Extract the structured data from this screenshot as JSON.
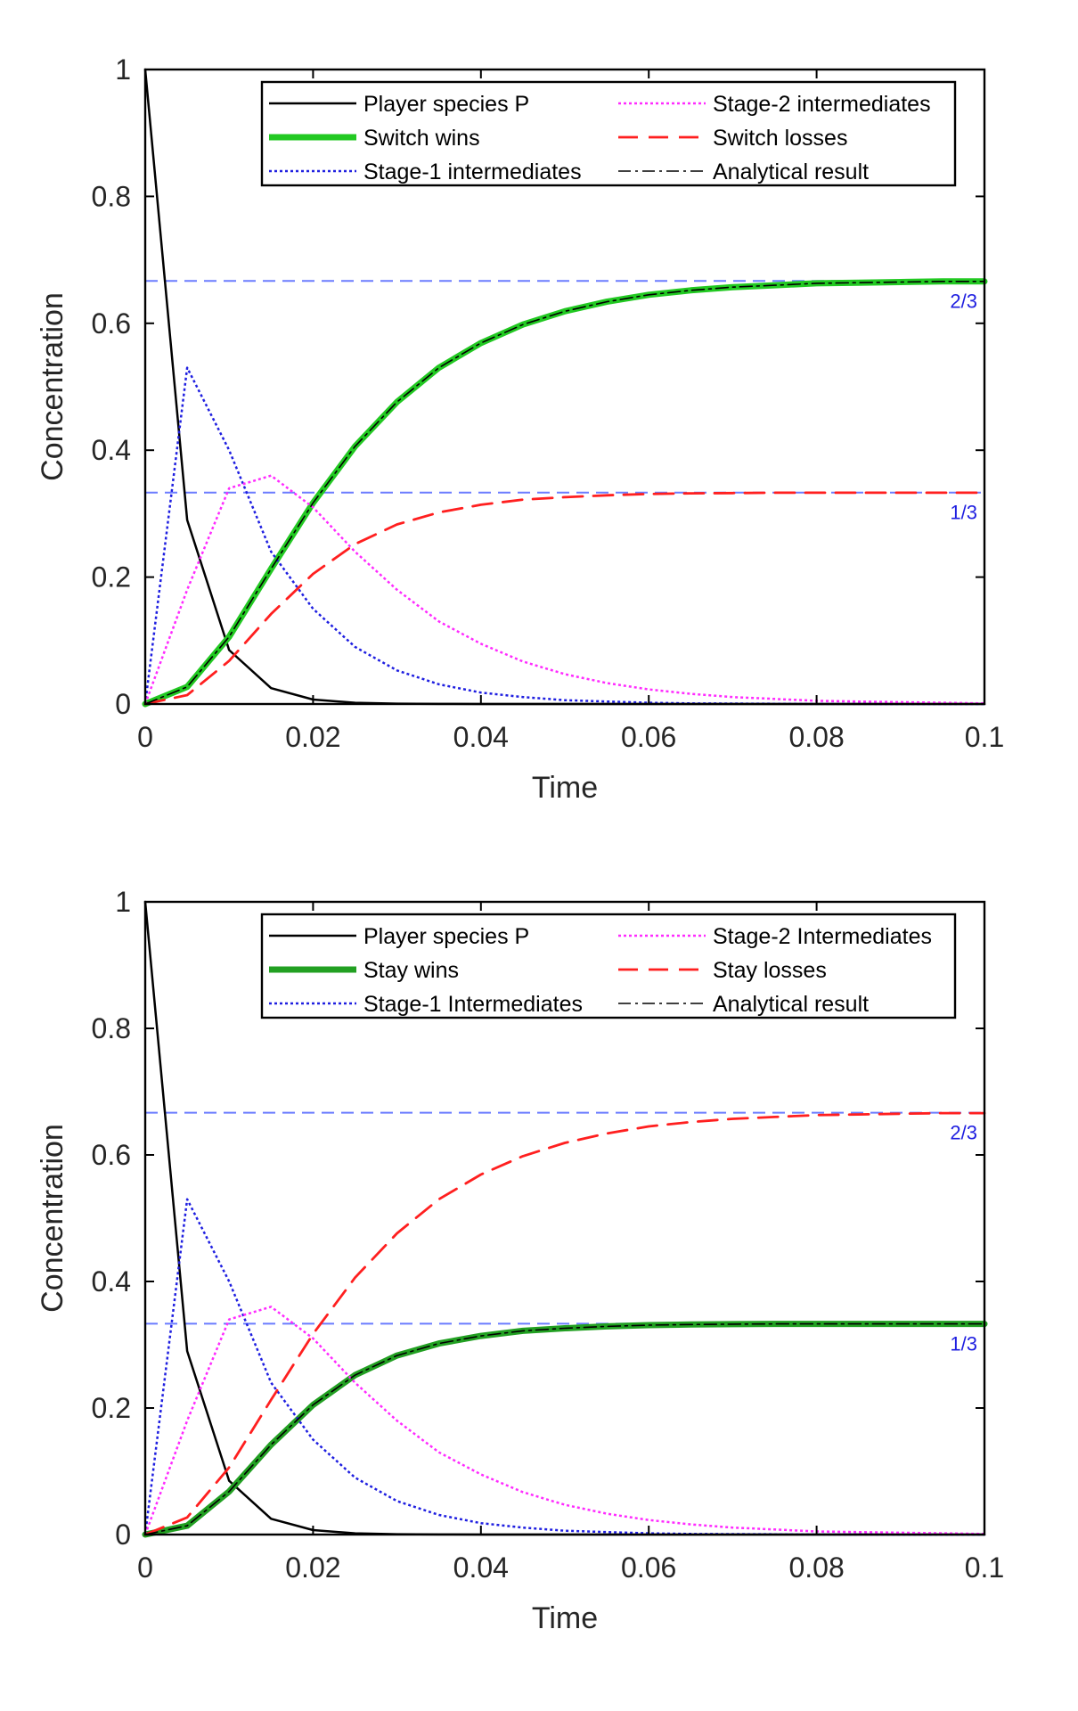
{
  "chart_data": [
    {
      "type": "line",
      "xlabel": "Time",
      "ylabel": "Concentration",
      "xlim": [
        0,
        0.1
      ],
      "ylim": [
        0,
        1
      ],
      "xticks": [
        0,
        0.02,
        0.04,
        0.06,
        0.08,
        0.1
      ],
      "xtick_labels": [
        "0",
        "0.02",
        "0.04",
        "0.06",
        "0.08",
        "0.1"
      ],
      "yticks": [
        0,
        0.2,
        0.4,
        0.6,
        0.8,
        1
      ],
      "ytick_labels": [
        "0",
        "0.2",
        "0.4",
        "0.6",
        "0.8",
        "1"
      ],
      "grid": false,
      "legend_position": "top-right",
      "ref_lines": [
        {
          "y": 0.6667,
          "label": "2/3",
          "color": "#6b7cff"
        },
        {
          "y": 0.3333,
          "label": "1/3",
          "color": "#6b7cff"
        }
      ],
      "x": [
        0,
        0.005,
        0.01,
        0.015,
        0.02,
        0.025,
        0.03,
        0.035,
        0.04,
        0.045,
        0.05,
        0.055,
        0.06,
        0.065,
        0.07,
        0.075,
        0.08,
        0.085,
        0.09,
        0.095,
        0.1
      ],
      "series": [
        {
          "name": "Player species P",
          "color": "#000000",
          "style": "solid",
          "width": 2.5,
          "values": [
            1.0,
            0.29,
            0.085,
            0.025,
            0.007,
            0.002,
            0.0006,
            0.0002,
            0,
            0,
            0,
            0,
            0,
            0,
            0,
            0,
            0,
            0,
            0,
            0,
            0
          ]
        },
        {
          "name": "Switch wins",
          "color": "#22c922",
          "style": "solid",
          "width": 7,
          "values": [
            0.0,
            0.027,
            0.106,
            0.213,
            0.317,
            0.406,
            0.476,
            0.53,
            0.569,
            0.598,
            0.619,
            0.634,
            0.645,
            0.652,
            0.657,
            0.66,
            0.663,
            0.664,
            0.665,
            0.666,
            0.666
          ]
        },
        {
          "name": "Stage-1 intermediates",
          "color": "#1f1fe0",
          "style": "dotted",
          "width": 2.5,
          "values": [
            0.0,
            0.53,
            0.4,
            0.24,
            0.15,
            0.09,
            0.053,
            0.031,
            0.018,
            0.011,
            0.006,
            0.004,
            0.002,
            0.001,
            0.0007,
            0.0004,
            0.0002,
            0.0001,
            0,
            0,
            0
          ]
        },
        {
          "name": "Stage-2 intermediates",
          "color": "#ff2bff",
          "style": "dotted",
          "width": 2.5,
          "values": [
            0.0,
            0.18,
            0.34,
            0.36,
            0.31,
            0.24,
            0.18,
            0.13,
            0.095,
            0.067,
            0.047,
            0.033,
            0.023,
            0.016,
            0.011,
            0.008,
            0.005,
            0.004,
            0.003,
            0.002,
            0.001
          ]
        },
        {
          "name": "Switch losses",
          "color": "#ff1f1f",
          "style": "dashed",
          "width": 2.8,
          "values": [
            0.0,
            0.014,
            0.068,
            0.142,
            0.205,
            0.252,
            0.283,
            0.302,
            0.314,
            0.322,
            0.326,
            0.329,
            0.331,
            0.332,
            0.3325,
            0.333,
            0.333,
            0.333,
            0.333,
            0.333,
            0.333
          ]
        },
        {
          "name": "Analytical result",
          "color": "#000000",
          "style": "dashdot",
          "width": 1.6,
          "values": [
            0.0,
            0.027,
            0.106,
            0.213,
            0.317,
            0.406,
            0.476,
            0.53,
            0.569,
            0.598,
            0.619,
            0.634,
            0.645,
            0.652,
            0.657,
            0.66,
            0.663,
            0.664,
            0.665,
            0.666,
            0.666
          ]
        }
      ],
      "legend_order": [
        0,
        3,
        1,
        4,
        2,
        5
      ]
    },
    {
      "type": "line",
      "xlabel": "Time",
      "ylabel": "Concentration",
      "xlim": [
        0,
        0.1
      ],
      "ylim": [
        0,
        1
      ],
      "xticks": [
        0,
        0.02,
        0.04,
        0.06,
        0.08,
        0.1
      ],
      "xtick_labels": [
        "0",
        "0.02",
        "0.04",
        "0.06",
        "0.08",
        "0.1"
      ],
      "yticks": [
        0,
        0.2,
        0.4,
        0.6,
        0.8,
        1
      ],
      "ytick_labels": [
        "0",
        "0.2",
        "0.4",
        "0.6",
        "0.8",
        "1"
      ],
      "grid": false,
      "legend_position": "top-right",
      "ref_lines": [
        {
          "y": 0.6667,
          "label": "2/3",
          "color": "#6b7cff"
        },
        {
          "y": 0.3333,
          "label": "1/3",
          "color": "#6b7cff"
        }
      ],
      "x": [
        0,
        0.005,
        0.01,
        0.015,
        0.02,
        0.025,
        0.03,
        0.035,
        0.04,
        0.045,
        0.05,
        0.055,
        0.06,
        0.065,
        0.07,
        0.075,
        0.08,
        0.085,
        0.09,
        0.095,
        0.1
      ],
      "series": [
        {
          "name": "Player species P",
          "color": "#000000",
          "style": "solid",
          "width": 2.5,
          "values": [
            1.0,
            0.29,
            0.085,
            0.025,
            0.007,
            0.002,
            0.0006,
            0.0002,
            0,
            0,
            0,
            0,
            0,
            0,
            0,
            0,
            0,
            0,
            0,
            0,
            0
          ]
        },
        {
          "name": "Stay wins",
          "color": "#22a022",
          "style": "solid",
          "width": 7,
          "values": [
            0.0,
            0.014,
            0.068,
            0.142,
            0.205,
            0.252,
            0.283,
            0.302,
            0.314,
            0.322,
            0.326,
            0.329,
            0.331,
            0.332,
            0.3325,
            0.333,
            0.333,
            0.333,
            0.333,
            0.333,
            0.333
          ]
        },
        {
          "name": "Stage-1 Intermediates",
          "color": "#1f1fe0",
          "style": "dotted",
          "width": 2.5,
          "values": [
            0.0,
            0.53,
            0.4,
            0.24,
            0.15,
            0.09,
            0.053,
            0.031,
            0.018,
            0.011,
            0.006,
            0.004,
            0.002,
            0.001,
            0.0007,
            0.0004,
            0.0002,
            0.0001,
            0,
            0,
            0
          ]
        },
        {
          "name": "Stage-2 Intermediates",
          "color": "#ff2bff",
          "style": "dotted",
          "width": 2.5,
          "values": [
            0.0,
            0.18,
            0.34,
            0.36,
            0.31,
            0.24,
            0.18,
            0.13,
            0.095,
            0.067,
            0.047,
            0.033,
            0.023,
            0.016,
            0.011,
            0.008,
            0.005,
            0.004,
            0.003,
            0.002,
            0.001
          ]
        },
        {
          "name": "Stay losses",
          "color": "#ff1f1f",
          "style": "dashed",
          "width": 2.8,
          "values": [
            0.0,
            0.027,
            0.106,
            0.213,
            0.317,
            0.406,
            0.476,
            0.53,
            0.569,
            0.598,
            0.619,
            0.634,
            0.645,
            0.652,
            0.657,
            0.66,
            0.663,
            0.664,
            0.665,
            0.666,
            0.666
          ]
        },
        {
          "name": "Analytical result",
          "color": "#000000",
          "style": "dashdot",
          "width": 1.6,
          "values": [
            0.0,
            0.014,
            0.068,
            0.142,
            0.205,
            0.252,
            0.283,
            0.302,
            0.314,
            0.322,
            0.326,
            0.329,
            0.331,
            0.332,
            0.3325,
            0.333,
            0.333,
            0.333,
            0.333,
            0.333,
            0.333
          ]
        }
      ],
      "legend_order": [
        0,
        3,
        1,
        4,
        2,
        5
      ]
    }
  ]
}
